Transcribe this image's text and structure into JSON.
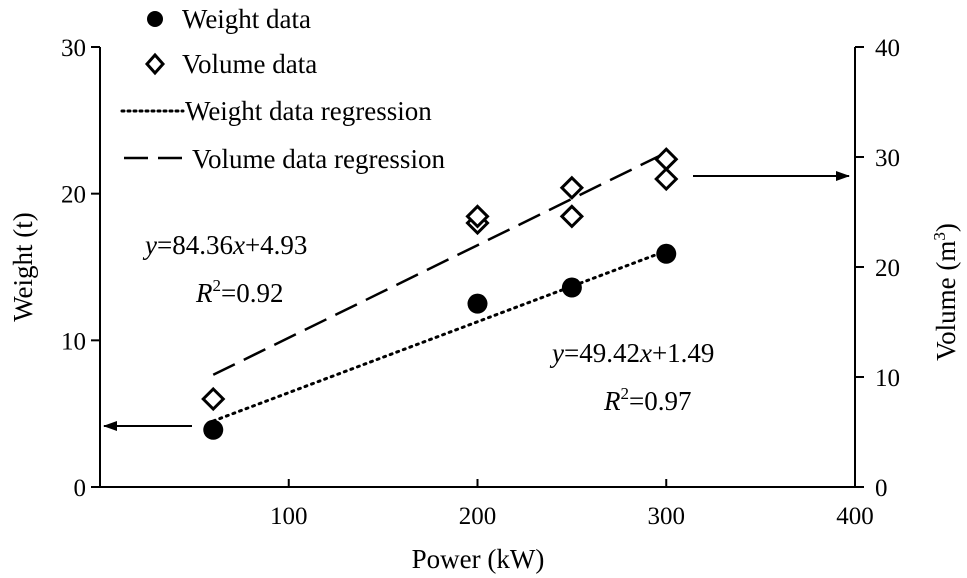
{
  "chart_data": {
    "type": "scatter",
    "xlabel": "Power (kW)",
    "ylabel_left": "Weight (t)",
    "ylabel_right": {
      "main": "Volume (m",
      "sup": "3",
      "close": ")"
    },
    "xlim": [
      0,
      400
    ],
    "ylim_left": [
      0,
      30
    ],
    "ylim_right": [
      0,
      40
    ],
    "x_ticks": [
      "100",
      "200",
      "300",
      "400"
    ],
    "x_tick_values": [
      100,
      200,
      300,
      400
    ],
    "y_left_ticks": [
      "0",
      "10",
      "20",
      "30"
    ],
    "y_left_tick_values": [
      0,
      10,
      20,
      30
    ],
    "y_right_ticks": [
      "0",
      "10",
      "20",
      "30",
      "40"
    ],
    "y_right_tick_values": [
      0,
      10,
      20,
      30,
      40
    ],
    "grid": false,
    "legend_position": "top-left",
    "series": [
      {
        "name": "Weight data",
        "axis": "left",
        "marker": "filled-circle",
        "x": [
          60,
          200,
          250,
          300
        ],
        "y": [
          3.9,
          12.5,
          13.6,
          15.9
        ]
      },
      {
        "name": "Volume data",
        "axis": "right",
        "marker": "open-diamond",
        "x": [
          60,
          200,
          200,
          250,
          250,
          300,
          300
        ],
        "y": [
          8.0,
          24.0,
          24.6,
          24.6,
          27.2,
          28.0,
          29.8
        ]
      },
      {
        "name": "Weight data regression",
        "axis": "left",
        "style": "dotted",
        "x": [
          60,
          300
        ],
        "y": [
          4.5,
          16.1
        ]
      },
      {
        "name": "Volume data regression",
        "axis": "right",
        "style": "dashed",
        "x": [
          60,
          300
        ],
        "y": [
          10.2,
          30.4
        ]
      }
    ],
    "annotations": [
      {
        "id": "volume-regression-equation",
        "line1": {
          "y": "y",
          "rest1": "=84.36",
          "x": "x",
          "rest2": "+4.93"
        },
        "line2": {
          "r": "R",
          "sup": "2",
          "rest": "=0.92"
        }
      },
      {
        "id": "weight-regression-equation",
        "line1": {
          "y": "y",
          "rest1": "=49.42",
          "x": "x",
          "rest2": "+1.49"
        },
        "line2": {
          "r": "R",
          "sup": "2",
          "rest": "=0.97"
        }
      }
    ],
    "arrows": [
      {
        "id": "left-axis-arrow",
        "points_to": "left",
        "from_series": "Weight data"
      },
      {
        "id": "right-axis-arrow",
        "points_to": "right",
        "from_series": "Volume data"
      }
    ]
  }
}
